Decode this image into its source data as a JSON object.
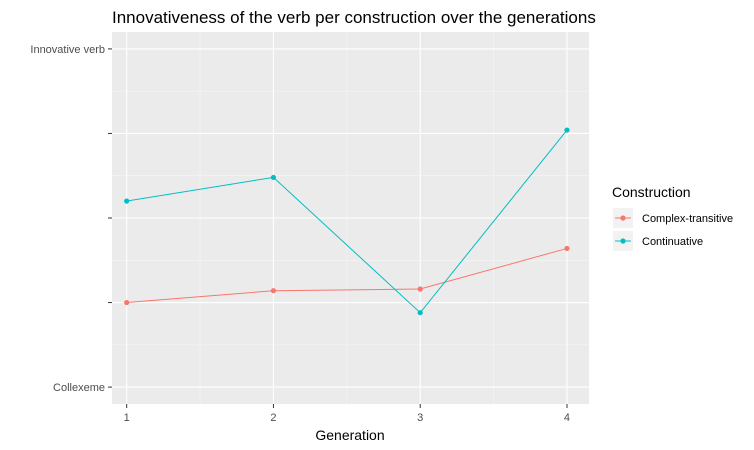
{
  "chart_data": {
    "type": "line",
    "title": "Innovativeness of the verb per construction over the generations",
    "xlabel": "Generation",
    "ylabel": "",
    "x": [
      1,
      2,
      3,
      4
    ],
    "xticks": [
      "1",
      "2",
      "3",
      "4"
    ],
    "xlim": [
      0.9,
      4.15
    ],
    "ylim": [
      -0.05,
      1.05
    ],
    "yticks": [
      {
        "value": 0,
        "label": "Collexeme"
      },
      {
        "value": 0.25,
        "label": ""
      },
      {
        "value": 0.5,
        "label": ""
      },
      {
        "value": 0.75,
        "label": ""
      },
      {
        "value": 1,
        "label": "Innovative verb"
      }
    ],
    "grid": true,
    "legend": {
      "title": "Construction",
      "position": "right"
    },
    "series": [
      {
        "name": "Complex-transitive",
        "color": "#F8766D",
        "values": [
          0.25,
          0.285,
          0.29,
          0.41
        ]
      },
      {
        "name": "Continuative",
        "color": "#00BFC4",
        "values": [
          0.55,
          0.62,
          0.22,
          0.76
        ]
      }
    ]
  }
}
